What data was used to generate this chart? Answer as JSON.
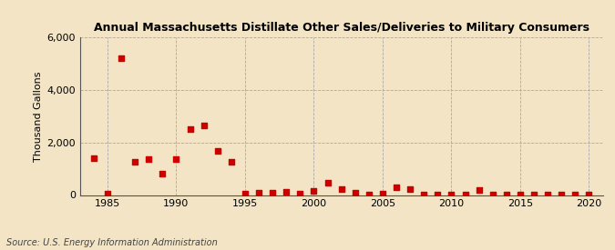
{
  "title": "Annual Massachusetts Distillate Other Sales/Deliveries to Military Consumers",
  "ylabel": "Thousand Gallons",
  "source": "Source: U.S. Energy Information Administration",
  "background_color": "#f2e4c4",
  "plot_background_color": "#f2e4c4",
  "marker_color": "#cc0000",
  "marker_size": 5,
  "xlim": [
    1983,
    2021
  ],
  "ylim": [
    0,
    6000
  ],
  "yticks": [
    0,
    2000,
    4000,
    6000
  ],
  "ytick_labels": [
    "0",
    "2,000",
    "4,000",
    "6,000"
  ],
  "xticks": [
    1985,
    1990,
    1995,
    2000,
    2005,
    2010,
    2015,
    2020
  ],
  "data": {
    "1984": 1400,
    "1985": 60,
    "1986": 5200,
    "1987": 1250,
    "1988": 1380,
    "1989": 820,
    "1990": 1380,
    "1991": 2500,
    "1992": 2650,
    "1993": 1680,
    "1994": 1250,
    "1995": 60,
    "1996": 90,
    "1997": 100,
    "1998": 115,
    "1999": 50,
    "2000": 160,
    "2001": 480,
    "2002": 230,
    "2003": 100,
    "2004": 5,
    "2005": 60,
    "2006": 310,
    "2007": 240,
    "2008": 5,
    "2009": 5,
    "2010": 5,
    "2011": 5,
    "2012": 180,
    "2013": 5,
    "2014": 5,
    "2015": 5,
    "2016": 5,
    "2017": 5,
    "2018": 5,
    "2019": 5,
    "2020": 5
  }
}
